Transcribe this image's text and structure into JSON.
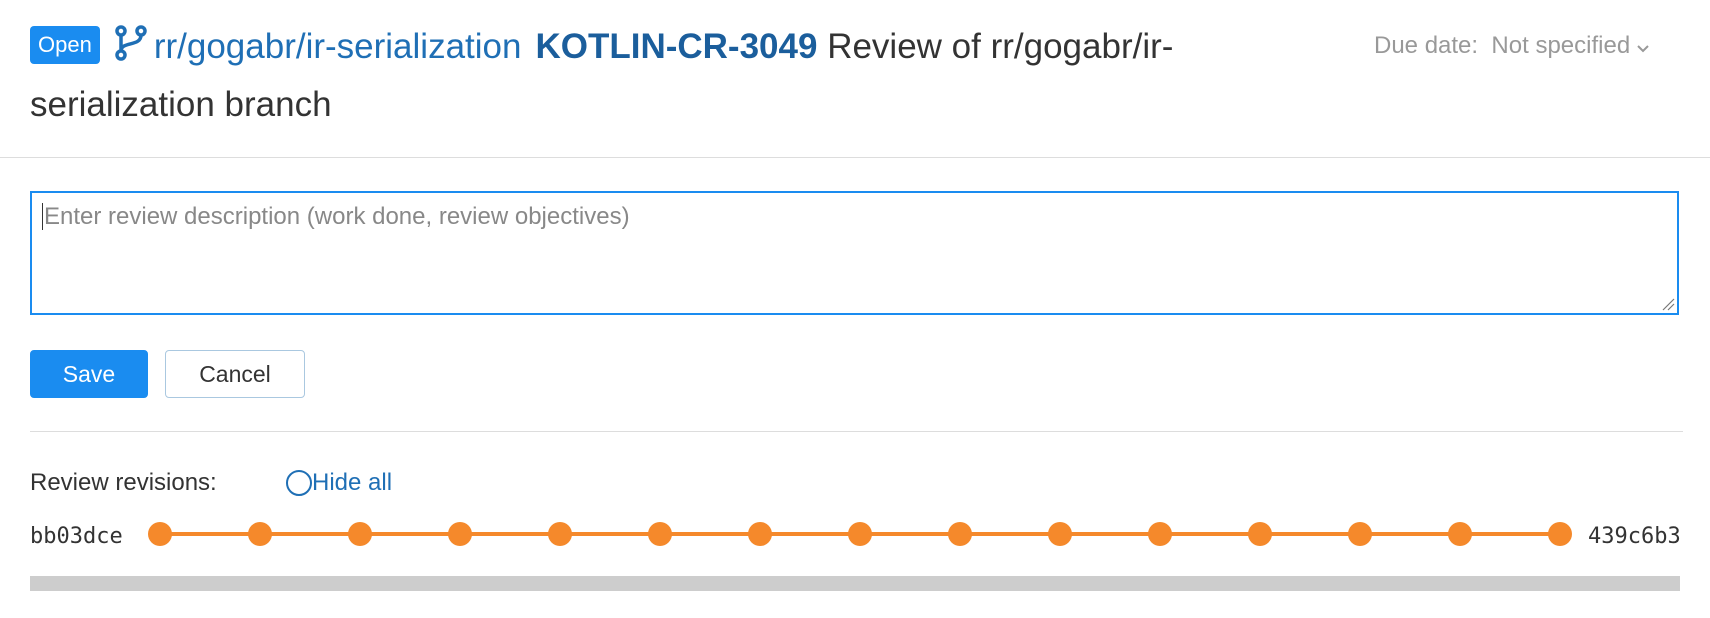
{
  "header": {
    "status": "Open",
    "branch": "rr/gogabr/ir-serialization",
    "review_id": "KOTLIN-CR-3049",
    "title": "Review of rr/gogabr/ir-serialization branch",
    "due_label": "Due date:",
    "due_value": "Not specified"
  },
  "description": {
    "placeholder": "Enter review description (work done, review objectives)"
  },
  "buttons": {
    "save": "Save",
    "cancel": "Cancel"
  },
  "revisions": {
    "label": "Review revisions:",
    "hide_all": "Hide all",
    "first": "bb03dce",
    "last": "439c6b3"
  }
}
